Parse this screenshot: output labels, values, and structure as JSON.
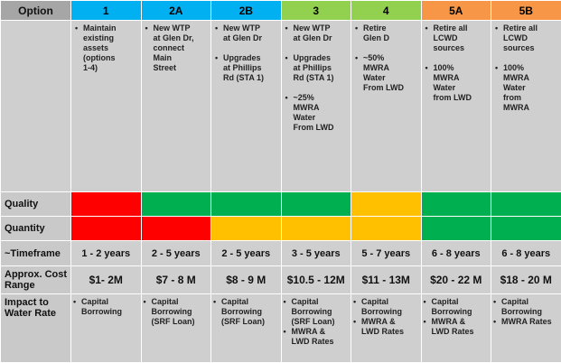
{
  "colors": {
    "header_label_bg": "#a6a6a6",
    "opt_blue": "#00b0f0",
    "opt_green": "#92d050",
    "opt_orange": "#f79646",
    "red": "#ff0000",
    "green": "#00b050",
    "yellow": "#ffc000",
    "cell_gray": "#cfcfcf"
  },
  "header": {
    "label": "Option",
    "options": [
      "1",
      "2A",
      "2B",
      "3",
      "4",
      "5A",
      "5B"
    ]
  },
  "descriptions": [
    {
      "items": [
        {
          "lines": [
            "Maintain",
            "existing",
            "assets",
            "(options",
            "1-4)"
          ]
        }
      ]
    },
    {
      "items": [
        {
          "lines": [
            "New WTP",
            "at Glen Dr,",
            "connect",
            "Main",
            "Street"
          ]
        }
      ]
    },
    {
      "items": [
        {
          "lines": [
            "New WTP",
            "at Glen Dr"
          ]
        },
        {
          "lines": [
            "Upgrades",
            "at Phillips",
            "Rd (STA 1)"
          ]
        }
      ]
    },
    {
      "items": [
        {
          "lines": [
            "New WTP",
            "at Glen Dr"
          ]
        },
        {
          "lines": [
            "Upgrades",
            "at Phillips",
            "Rd (STA 1)"
          ]
        },
        {
          "lines": [
            "~25%",
            "MWRA",
            "Water",
            "From LWD"
          ]
        }
      ]
    },
    {
      "items": [
        {
          "lines": [
            "Retire",
            "Glen D"
          ]
        },
        {
          "lines": [
            "~50%",
            "MWRA",
            "Water",
            "From LWD"
          ]
        }
      ]
    },
    {
      "items": [
        {
          "lines": [
            "Retire all",
            "LCWD",
            "sources"
          ]
        },
        {
          "lines": [
            "100%",
            "MWRA",
            "Water",
            "from LWD"
          ]
        }
      ]
    },
    {
      "items": [
        {
          "lines": [
            "Retire all",
            "LCWD",
            "sources"
          ]
        },
        {
          "lines": [
            "100%",
            "MWRA",
            "Water",
            "from",
            "MWRA"
          ]
        }
      ]
    }
  ],
  "rows": {
    "quality": {
      "label": "Quality",
      "ratings": [
        "red",
        "green",
        "green",
        "green",
        "yellow",
        "green",
        "green"
      ]
    },
    "quantity": {
      "label": "Quantity",
      "ratings": [
        "red",
        "red",
        "yellow",
        "yellow",
        "yellow",
        "green",
        "green"
      ]
    },
    "timeframe": {
      "label": "~Timeframe",
      "values": [
        "1 - 2 years",
        "2 - 5 years",
        "2 - 5 years",
        "3 - 5 years",
        "5 - 7 years",
        "6 - 8 years",
        "6 - 8 years"
      ]
    },
    "cost": {
      "label_line1": "Approx. Cost",
      "label_line2": "Range",
      "values": [
        "$1- 2M",
        "$7 - 8 M",
        "$8 - 9 M",
        "$10.5 - 12M",
        "$11 - 13M",
        "$20 - 22 M",
        "$18 - 20 M"
      ]
    },
    "rate": {
      "label_line1": "Impact to",
      "label_line2": "Water Rate",
      "values": [
        {
          "items": [
            {
              "lines": [
                "Capital",
                "Borrowing"
              ]
            }
          ]
        },
        {
          "items": [
            {
              "lines": [
                "Capital",
                "Borrowing",
                "(SRF Loan)"
              ]
            }
          ]
        },
        {
          "items": [
            {
              "lines": [
                "Capital",
                "Borrowing",
                "(SRF Loan)"
              ]
            }
          ]
        },
        {
          "items": [
            {
              "lines": [
                "Capital",
                "Borrowing",
                "(SRF Loan)"
              ]
            },
            {
              "lines": [
                "MWRA &",
                "LWD Rates"
              ]
            }
          ]
        },
        {
          "items": [
            {
              "lines": [
                "Capital",
                "Borrowing"
              ]
            },
            {
              "lines": [
                "MWRA &",
                "LWD Rates"
              ]
            }
          ]
        },
        {
          "items": [
            {
              "lines": [
                "Capital",
                "Borrowing"
              ]
            },
            {
              "lines": [
                "MWRA &",
                "LWD Rates"
              ]
            }
          ]
        },
        {
          "items": [
            {
              "lines": [
                "Capital",
                "Borrowing"
              ]
            },
            {
              "lines": [
                "MWRA Rates"
              ]
            }
          ]
        }
      ]
    }
  }
}
